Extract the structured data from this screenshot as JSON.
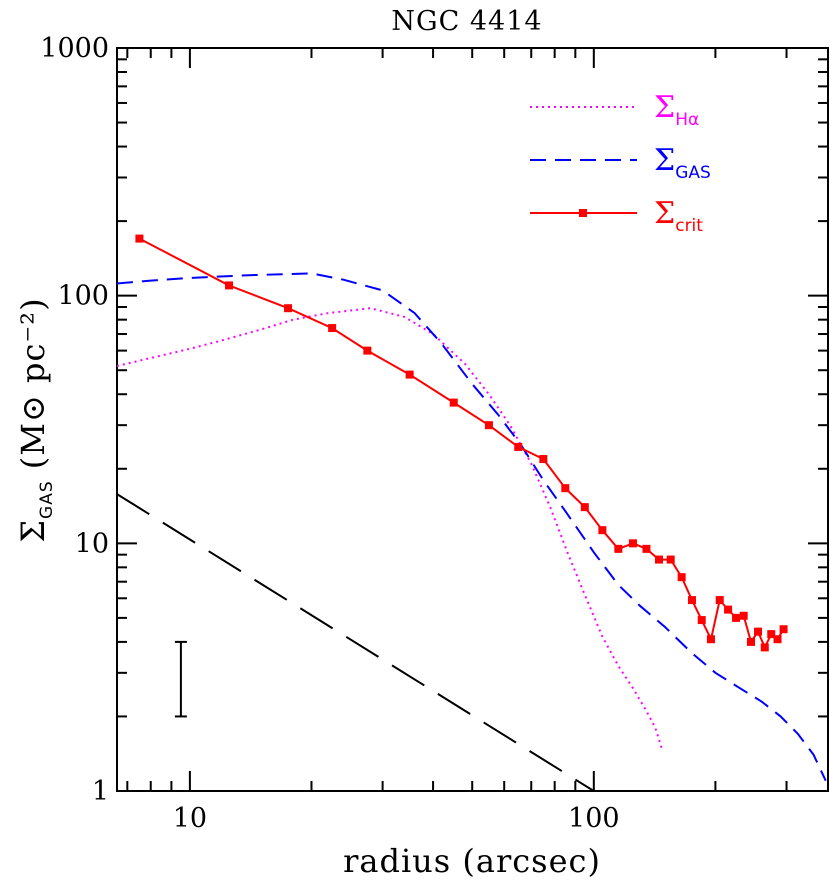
{
  "chart_data": {
    "type": "line",
    "title": "NGC 4414",
    "xlabel": "radius (arcsec)",
    "ylabel": {
      "sigma": "Σ",
      "sub": "GAS",
      "rest": " (M⊙ pc⁻²)"
    },
    "xscale": "log",
    "yscale": "log",
    "xlim": [
      6.6,
      380
    ],
    "ylim": [
      1,
      1000
    ],
    "xticks": [
      {
        "v": 10,
        "label": "10"
      },
      {
        "v": 100,
        "label": "100"
      }
    ],
    "yticks": [
      {
        "v": 1,
        "label": "1"
      },
      {
        "v": 10,
        "label": "10"
      },
      {
        "v": 100,
        "label": "100"
      },
      {
        "v": 1000,
        "label": "1000"
      }
    ],
    "legend_position": "top-right",
    "series": [
      {
        "key": "halpha",
        "legend_sigma": "Σ",
        "legend_sub": "Hα",
        "color": "#ff00ff",
        "style": "dotted",
        "x": [
          6.6,
          8,
          10,
          12,
          15,
          18,
          22,
          28,
          34,
          40,
          48,
          55,
          62,
          70,
          78,
          86,
          95,
          105,
          115,
          125,
          135,
          142,
          148
        ],
        "y": [
          52,
          56,
          61,
          66,
          73,
          80,
          85,
          89,
          82,
          70,
          53,
          40,
          30,
          21,
          14,
          9.2,
          6.2,
          4.2,
          3.2,
          2.6,
          2.1,
          1.8,
          1.45
        ]
      },
      {
        "key": "gas",
        "legend_sigma": "Σ",
        "legend_sub": "GAS",
        "color": "#0000ff",
        "style": "dashed",
        "x": [
          6.6,
          8,
          10,
          14,
          20,
          24,
          30,
          36,
          42,
          50,
          58,
          66,
          75,
          85,
          100,
          115,
          130,
          150,
          175,
          200,
          230,
          260,
          290,
          320,
          350,
          375
        ],
        "y": [
          112,
          115,
          118,
          121,
          123,
          116,
          105,
          85,
          64,
          44,
          33,
          25,
          18,
          13.5,
          9.2,
          6.8,
          5.6,
          4.6,
          3.6,
          3.0,
          2.6,
          2.3,
          2.0,
          1.7,
          1.4,
          1.1
        ]
      },
      {
        "key": "crit",
        "legend_sigma": "Σ",
        "legend_sub": "crit",
        "color": "#ff0000",
        "style": "solid-square",
        "x": [
          7.5,
          12.5,
          17.5,
          22.5,
          27.5,
          35,
          45,
          55,
          65,
          75,
          85,
          95,
          105,
          115,
          125,
          135,
          145,
          155,
          165,
          175,
          185,
          195,
          205,
          215,
          225,
          235,
          245,
          255,
          265,
          275,
          285,
          295
        ],
        "y": [
          170,
          110,
          89,
          74,
          60,
          48,
          37,
          30,
          24.5,
          21.9,
          16.7,
          14,
          11.3,
          9.5,
          10,
          9.5,
          8.6,
          8.6,
          7.3,
          5.9,
          4.9,
          4.1,
          5.9,
          5.4,
          5.0,
          5.1,
          4.0,
          4.4,
          3.8,
          4.3,
          4.1,
          4.5
        ]
      },
      {
        "key": "ref",
        "color": "#000000",
        "style": "longdash",
        "x": [
          6.6,
          100
        ],
        "y": [
          15.8,
          1.0
        ]
      }
    ],
    "error_bar": {
      "x": 9.5,
      "ylow": 2.0,
      "yhigh": 4.0
    }
  }
}
